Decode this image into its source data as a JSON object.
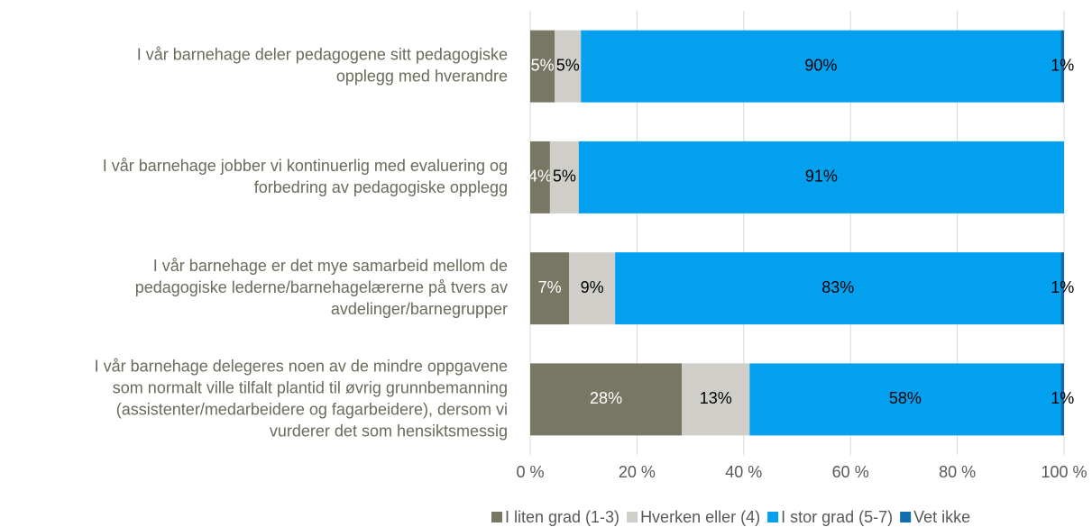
{
  "chart_data": {
    "type": "stacked_barh",
    "categories": [
      [
        "I vår barnehage deler pedagogene sitt pedagogiske",
        "opplegg med hverandre"
      ],
      [
        "I vår barnehage jobber vi kontinuerlig med evaluering og",
        "forbedring av pedagogiske opplegg"
      ],
      [
        "I vår barnehage er det mye samarbeid mellom de",
        "pedagogiske lederne/barnehagelærerne på tvers av",
        "avdelinger/barnegrupper"
      ],
      [
        "I vår barnehage delegeres noen av de mindre oppgavene",
        "som normalt ville tilfalt plantid til øvrig grunnbemanning",
        "(assistenter/medarbeidere og fagarbeidere), dersom vi",
        "vurderer det som hensiktsmessig"
      ]
    ],
    "series": [
      {
        "name": "I liten grad (1-3)",
        "color": "#777764",
        "values": [
          4.6,
          3.7,
          7.3,
          28.4
        ],
        "value_labels": [
          "5%",
          "4%",
          "7%",
          "28%"
        ]
      },
      {
        "name": "Hverken eller (4)",
        "color": "#d0cec9",
        "values": [
          4.9,
          5.4,
          8.6,
          12.7
        ],
        "value_labels": [
          "5%",
          "5%",
          "9%",
          "13%"
        ]
      },
      {
        "name": "I stor grad (5-7)",
        "color": "#02a0ee",
        "values": [
          89.9,
          90.9,
          83.5,
          58.3
        ],
        "value_labels": [
          "90%",
          "91%",
          "83%",
          "58%"
        ]
      },
      {
        "name": "Vet ikke",
        "color": "#0f6fae",
        "values": [
          0.6,
          0,
          0.6,
          0.6
        ],
        "value_labels": [
          "1%",
          null,
          "1%",
          "1%"
        ]
      }
    ],
    "xlim": [
      0,
      100
    ],
    "xticks": [
      {
        "value": 0,
        "label": "0 %"
      },
      {
        "value": 20,
        "label": "20 %"
      },
      {
        "value": 40,
        "label": "40 %"
      },
      {
        "value": 60,
        "label": "60 %"
      },
      {
        "value": 80,
        "label": "80 %"
      },
      {
        "value": 100,
        "label": "100 %"
      }
    ],
    "grid": true,
    "legend": "bottom"
  }
}
